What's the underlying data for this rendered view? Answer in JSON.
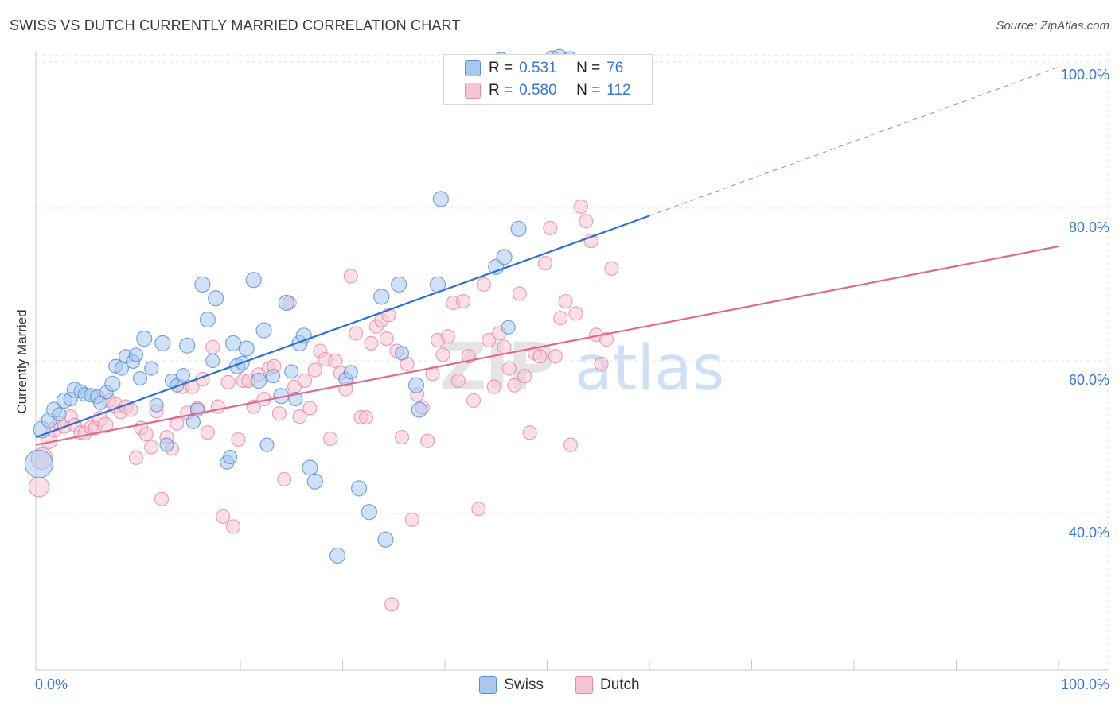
{
  "title": "SWISS VS DUTCH CURRENTLY MARRIED CORRELATION CHART",
  "source": "Source: ZipAtlas.com",
  "watermark": {
    "zip": "ZIP",
    "atlas": "atlas"
  },
  "legend_top": {
    "swiss": {
      "r_label": "R =",
      "r_value": "0.531",
      "n_label": "N =",
      "n_value": "76"
    },
    "dutch": {
      "r_label": "R =",
      "r_value": "0.580",
      "n_label": "N =",
      "n_value": "112"
    }
  },
  "legend_bottom": {
    "swiss": "Swiss",
    "dutch": "Dutch"
  },
  "colors": {
    "swiss_fill": "#aac8ee",
    "swiss_stroke": "#5a8fd6",
    "swiss_line": "#2f6fd0",
    "dutch_fill": "#f7c4d4",
    "dutch_stroke": "#e58aa8",
    "dutch_line": "#e06890",
    "grid": "#e6e6e6",
    "axis": "#c8c8c8",
    "tick_text": "#3a78d0"
  },
  "chart_data": {
    "type": "scatter",
    "title": "SWISS VS DUTCH CURRENTLY MARRIED CORRELATION CHART",
    "xlabel": "",
    "ylabel": "Currently Married",
    "xlim": [
      0,
      100
    ],
    "ylim": [
      19.5,
      100.5
    ],
    "x_tick_labels": [
      "0.0%",
      "100.0%"
    ],
    "y_ticks": [
      40,
      60,
      80,
      100
    ],
    "y_tick_labels": [
      "40.0%",
      "60.0%",
      "80.0%",
      "100.0%"
    ],
    "grid": true,
    "series": [
      {
        "name": "Swiss",
        "R": 0.531,
        "N": 76,
        "trend": {
          "x": [
            0,
            60
          ],
          "y": [
            50.0,
            79.0
          ],
          "dashed_to": {
            "x": 100,
            "y": 98.5
          }
        },
        "points": [
          [
            0.3,
            46.5,
            16
          ],
          [
            0.6,
            51.0,
            9
          ],
          [
            1.3,
            52.2,
            8
          ],
          [
            1.8,
            53.6,
            8
          ],
          [
            2.3,
            53.0,
            7
          ],
          [
            2.8,
            54.8,
            8
          ],
          [
            3.4,
            55.0,
            7
          ],
          [
            3.8,
            56.2,
            8
          ],
          [
            4.4,
            56.0,
            7
          ],
          [
            4.8,
            55.6,
            7
          ],
          [
            5.4,
            55.5,
            7
          ],
          [
            6.0,
            55.3,
            7
          ],
          [
            6.3,
            54.5,
            7
          ],
          [
            6.9,
            55.9,
            7
          ],
          [
            7.5,
            57.0,
            8
          ],
          [
            7.8,
            59.3,
            7
          ],
          [
            8.4,
            59.0,
            7
          ],
          [
            8.8,
            60.6,
            7
          ],
          [
            9.5,
            59.9,
            7
          ],
          [
            9.8,
            60.8,
            7
          ],
          [
            10.2,
            57.7,
            7
          ],
          [
            10.6,
            62.9,
            8
          ],
          [
            11.3,
            59.0,
            7
          ],
          [
            11.8,
            54.2,
            7
          ],
          [
            12.4,
            62.3,
            8
          ],
          [
            12.8,
            49.0,
            7
          ],
          [
            13.3,
            57.4,
            7
          ],
          [
            13.8,
            56.8,
            7
          ],
          [
            14.4,
            58.1,
            7
          ],
          [
            14.8,
            62.0,
            8
          ],
          [
            15.4,
            52.0,
            7
          ],
          [
            15.8,
            53.6,
            7
          ],
          [
            16.3,
            70.0,
            8
          ],
          [
            16.8,
            65.4,
            8
          ],
          [
            17.3,
            60.0,
            7
          ],
          [
            17.6,
            68.2,
            8
          ],
          [
            18.7,
            46.7,
            7
          ],
          [
            19.0,
            47.4,
            7
          ],
          [
            19.3,
            62.3,
            8
          ],
          [
            19.7,
            59.3,
            8
          ],
          [
            20.2,
            59.7,
            7
          ],
          [
            20.6,
            61.6,
            8
          ],
          [
            21.3,
            70.6,
            8
          ],
          [
            21.8,
            57.4,
            8
          ],
          [
            22.3,
            64.0,
            8
          ],
          [
            22.6,
            49.0,
            7
          ],
          [
            23.2,
            58.0,
            7
          ],
          [
            24.0,
            55.4,
            8
          ],
          [
            24.5,
            67.6,
            8
          ],
          [
            25.0,
            58.6,
            7
          ],
          [
            25.4,
            55.0,
            7
          ],
          [
            25.8,
            62.3,
            8
          ],
          [
            26.2,
            63.3,
            8
          ],
          [
            26.8,
            46.0,
            8
          ],
          [
            27.3,
            44.2,
            8
          ],
          [
            29.5,
            34.5,
            8
          ],
          [
            30.3,
            57.6,
            7
          ],
          [
            30.8,
            58.5,
            7
          ],
          [
            31.6,
            43.3,
            8
          ],
          [
            32.6,
            40.2,
            8
          ],
          [
            33.8,
            68.4,
            8
          ],
          [
            34.2,
            36.6,
            8
          ],
          [
            35.5,
            70.0,
            8
          ],
          [
            35.8,
            61.0,
            7
          ],
          [
            37.2,
            56.8,
            8
          ],
          [
            37.5,
            53.6,
            8
          ],
          [
            39.3,
            70.0,
            8
          ],
          [
            39.6,
            81.2,
            8
          ],
          [
            45.0,
            72.3,
            8
          ],
          [
            45.5,
            99.3,
            9
          ],
          [
            45.8,
            73.6,
            8
          ],
          [
            46.2,
            64.4,
            7
          ],
          [
            47.2,
            77.3,
            8
          ],
          [
            50.5,
            99.6,
            8
          ],
          [
            51.2,
            99.8,
            8
          ],
          [
            52.2,
            99.5,
            8
          ]
        ]
      },
      {
        "name": "Dutch",
        "R": 0.58,
        "N": 112,
        "trend": {
          "x": [
            0,
            100
          ],
          "y": [
            49.0,
            75.0
          ]
        },
        "points": [
          [
            0.3,
            43.5,
            11
          ],
          [
            0.6,
            47.2,
            12
          ],
          [
            1.3,
            49.6,
            9
          ],
          [
            1.8,
            51.0,
            8
          ],
          [
            2.3,
            51.8,
            7
          ],
          [
            2.8,
            51.4,
            7
          ],
          [
            3.4,
            52.7,
            7
          ],
          [
            3.8,
            51.6,
            7
          ],
          [
            4.4,
            50.6,
            7
          ],
          [
            4.8,
            50.5,
            7
          ],
          [
            5.4,
            51.3,
            7
          ],
          [
            5.8,
            51.2,
            7
          ],
          [
            6.3,
            52.4,
            8
          ],
          [
            6.8,
            51.6,
            8
          ],
          [
            7.2,
            54.8,
            7
          ],
          [
            7.8,
            54.2,
            8
          ],
          [
            8.3,
            53.3,
            7
          ],
          [
            8.8,
            54.0,
            7
          ],
          [
            9.3,
            53.6,
            7
          ],
          [
            9.8,
            47.3,
            7
          ],
          [
            10.3,
            51.2,
            7
          ],
          [
            10.8,
            50.4,
            7
          ],
          [
            11.3,
            48.7,
            7
          ],
          [
            11.8,
            53.4,
            7
          ],
          [
            12.3,
            41.9,
            7
          ],
          [
            12.8,
            50.0,
            7
          ],
          [
            13.3,
            48.5,
            7
          ],
          [
            13.8,
            51.8,
            7
          ],
          [
            14.3,
            56.6,
            7
          ],
          [
            14.8,
            53.2,
            7
          ],
          [
            15.3,
            56.6,
            7
          ],
          [
            15.8,
            53.8,
            7
          ],
          [
            16.3,
            57.6,
            7
          ],
          [
            16.8,
            50.6,
            7
          ],
          [
            17.3,
            61.8,
            7
          ],
          [
            17.8,
            54.0,
            7
          ],
          [
            18.3,
            39.6,
            7
          ],
          [
            18.8,
            57.2,
            7
          ],
          [
            19.3,
            38.3,
            7
          ],
          [
            19.8,
            49.7,
            7
          ],
          [
            20.3,
            57.4,
            7
          ],
          [
            20.8,
            57.4,
            7
          ],
          [
            21.3,
            54.0,
            7
          ],
          [
            21.8,
            58.2,
            7
          ],
          [
            22.3,
            55.0,
            7
          ],
          [
            22.8,
            59.0,
            7
          ],
          [
            23.3,
            59.3,
            7
          ],
          [
            23.8,
            53.1,
            7
          ],
          [
            24.3,
            44.5,
            7
          ],
          [
            24.8,
            67.6,
            7
          ],
          [
            25.3,
            56.6,
            7
          ],
          [
            25.8,
            52.7,
            7
          ],
          [
            26.3,
            57.4,
            7
          ],
          [
            26.8,
            53.8,
            7
          ],
          [
            27.3,
            58.8,
            7
          ],
          [
            27.8,
            61.3,
            7
          ],
          [
            28.3,
            60.2,
            7
          ],
          [
            28.8,
            49.8,
            7
          ],
          [
            29.3,
            60.0,
            7
          ],
          [
            29.8,
            58.4,
            7
          ],
          [
            30.3,
            56.3,
            7
          ],
          [
            30.8,
            71.1,
            7
          ],
          [
            31.3,
            63.6,
            7
          ],
          [
            31.8,
            52.6,
            7
          ],
          [
            32.3,
            52.6,
            7
          ],
          [
            32.8,
            62.3,
            7
          ],
          [
            33.3,
            64.5,
            7
          ],
          [
            33.8,
            65.3,
            7
          ],
          [
            34.3,
            62.9,
            7
          ],
          [
            34.5,
            66.0,
            7
          ],
          [
            34.8,
            28.1,
            7
          ],
          [
            35.3,
            61.3,
            7
          ],
          [
            35.8,
            50.0,
            7
          ],
          [
            36.3,
            59.6,
            7
          ],
          [
            36.8,
            39.2,
            7
          ],
          [
            37.3,
            55.6,
            7
          ],
          [
            37.8,
            53.9,
            7
          ],
          [
            38.3,
            49.5,
            7
          ],
          [
            38.8,
            58.3,
            7
          ],
          [
            39.3,
            62.7,
            7
          ],
          [
            39.8,
            60.8,
            7
          ],
          [
            40.3,
            63.2,
            7
          ],
          [
            40.8,
            67.6,
            7
          ],
          [
            41.3,
            57.4,
            7
          ],
          [
            41.8,
            67.8,
            7
          ],
          [
            42.3,
            60.6,
            7
          ],
          [
            42.8,
            54.8,
            7
          ],
          [
            43.3,
            40.6,
            7
          ],
          [
            43.8,
            70.0,
            7
          ],
          [
            44.3,
            62.7,
            7
          ],
          [
            44.8,
            56.6,
            7
          ],
          [
            45.3,
            63.6,
            7
          ],
          [
            45.8,
            61.8,
            7
          ],
          [
            46.3,
            59.0,
            7
          ],
          [
            46.8,
            56.8,
            7
          ],
          [
            47.3,
            68.8,
            7
          ],
          [
            47.8,
            58.0,
            7
          ],
          [
            48.3,
            50.6,
            7
          ],
          [
            48.8,
            61.0,
            7
          ],
          [
            49.3,
            60.6,
            7
          ],
          [
            49.8,
            72.8,
            7
          ],
          [
            50.3,
            77.4,
            7
          ],
          [
            50.8,
            60.6,
            7
          ],
          [
            51.3,
            65.6,
            7
          ],
          [
            51.8,
            67.8,
            7
          ],
          [
            52.3,
            49.0,
            7
          ],
          [
            52.8,
            66.2,
            7
          ],
          [
            53.3,
            80.2,
            7
          ],
          [
            53.8,
            78.3,
            7
          ],
          [
            54.3,
            75.7,
            7
          ],
          [
            54.8,
            63.4,
            7
          ],
          [
            55.3,
            59.6,
            7
          ],
          [
            55.8,
            62.8,
            7
          ],
          [
            56.3,
            72.1,
            7
          ]
        ]
      }
    ]
  }
}
